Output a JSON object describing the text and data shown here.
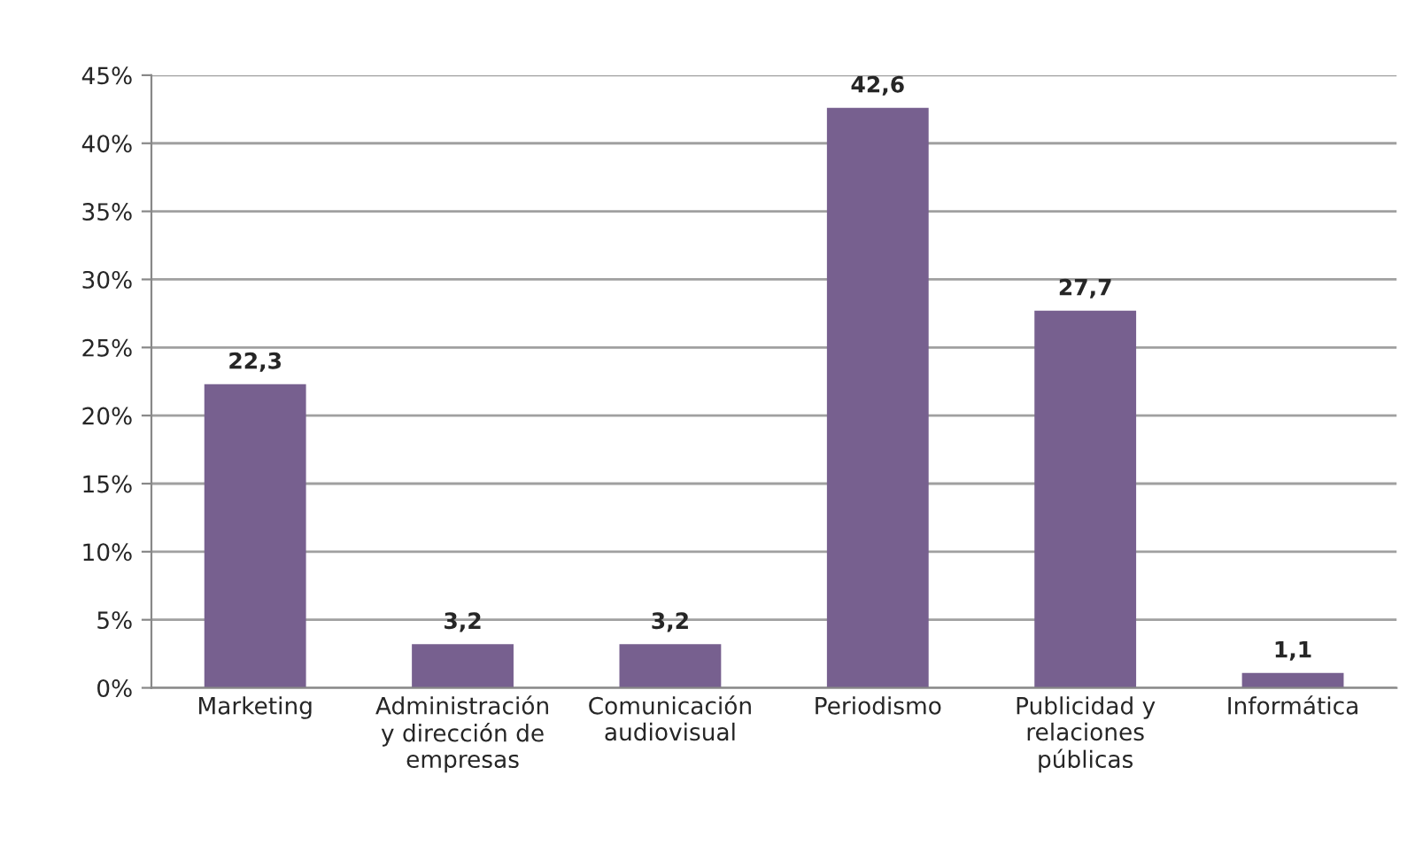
{
  "chart_data": {
    "type": "bar",
    "categories": [
      "Marketing",
      "Administración\ny dirección de\nempresas",
      "Comunicación\naudiovisual",
      "Periodismo",
      "Publicidad y\nrelaciones\npúblicas",
      "Informática"
    ],
    "values": [
      22.3,
      3.2,
      3.2,
      42.6,
      27.7,
      1.1
    ],
    "value_labels": [
      "22,3",
      "3,2",
      "3,2",
      "42,6",
      "27,7",
      "1,1"
    ],
    "color": "#77608f",
    "ylim": [
      0,
      45
    ],
    "yticks": [
      {
        "value": 0,
        "label": "0%"
      },
      {
        "value": 5,
        "label": "5%"
      },
      {
        "value": 10,
        "label": "10%"
      },
      {
        "value": 15,
        "label": "15%"
      },
      {
        "value": 20,
        "label": "20%"
      },
      {
        "value": 25,
        "label": "25%"
      },
      {
        "value": 30,
        "label": "30%"
      },
      {
        "value": 35,
        "label": "35%"
      },
      {
        "value": 40,
        "label": "40%"
      },
      {
        "value": 45,
        "label": "45%"
      }
    ],
    "grid": "y"
  }
}
